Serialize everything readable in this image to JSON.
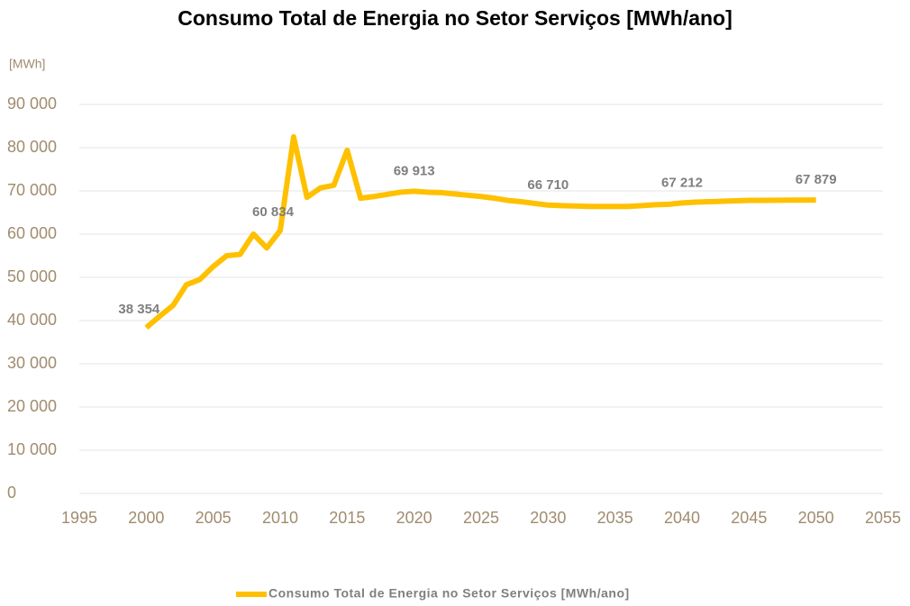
{
  "chart_data": {
    "type": "line",
    "title": "Consumo Total de Energia no Setor Serviços [MWh/ano]",
    "y_label": "[MWh]",
    "x": [
      2000,
      2001,
      2002,
      2003,
      2004,
      2005,
      2006,
      2007,
      2008,
      2009,
      2010,
      2011,
      2012,
      2013,
      2014,
      2015,
      2016,
      2017,
      2018,
      2019,
      2020,
      2021,
      2022,
      2023,
      2024,
      2025,
      2026,
      2027,
      2028,
      2029,
      2030,
      2031,
      2032,
      2033,
      2034,
      2035,
      2036,
      2037,
      2038,
      2039,
      2040,
      2041,
      2042,
      2043,
      2044,
      2045,
      2046,
      2047,
      2048,
      2049,
      2050
    ],
    "series": [
      {
        "name": "Consumo Total de Energia no Setor Serviços [MWh/ano]",
        "color": "#ffc000",
        "values": [
          38354,
          41000,
          43500,
          48300,
          49500,
          52500,
          55000,
          55300,
          60000,
          56800,
          60834,
          82500,
          68500,
          70700,
          71300,
          79400,
          68300,
          68700,
          69200,
          69700,
          69913,
          69700,
          69600,
          69300,
          69000,
          68700,
          68300,
          67800,
          67500,
          67100,
          66710,
          66600,
          66500,
          66400,
          66400,
          66400,
          66400,
          66600,
          66800,
          66900,
          67212,
          67400,
          67500,
          67600,
          67700,
          67800,
          67800,
          67850,
          67860,
          67870,
          67879
        ],
        "value_labels": [
          "38 354",
          null,
          null,
          null,
          null,
          null,
          null,
          null,
          null,
          null,
          "60 834",
          null,
          null,
          null,
          null,
          null,
          null,
          null,
          null,
          null,
          "69 913",
          null,
          null,
          null,
          null,
          null,
          null,
          null,
          null,
          null,
          "66 710",
          null,
          null,
          null,
          null,
          null,
          null,
          null,
          null,
          null,
          "67 212",
          null,
          null,
          null,
          null,
          null,
          null,
          null,
          null,
          null,
          "67 879"
        ]
      }
    ],
    "xlim": [
      1995,
      2055
    ],
    "xticks": [
      1995,
      2000,
      2005,
      2010,
      2015,
      2020,
      2025,
      2030,
      2035,
      2040,
      2045,
      2050,
      2055
    ],
    "ylim": [
      0,
      90000
    ],
    "yticks": [
      0,
      {
        "value": 10000,
        "label": "10 000"
      },
      {
        "value": 20000,
        "label": "20 000"
      },
      {
        "value": 30000,
        "label": "30 000"
      },
      {
        "value": 40000,
        "label": "40 000"
      },
      {
        "value": 50000,
        "label": "50 000"
      },
      {
        "value": 60000,
        "label": "60 000"
      },
      {
        "value": 70000,
        "label": "70 000"
      },
      {
        "value": 80000,
        "label": "80 000"
      },
      {
        "value": 90000,
        "label": "90 000"
      }
    ],
    "grid": true,
    "legend": "bottom"
  }
}
